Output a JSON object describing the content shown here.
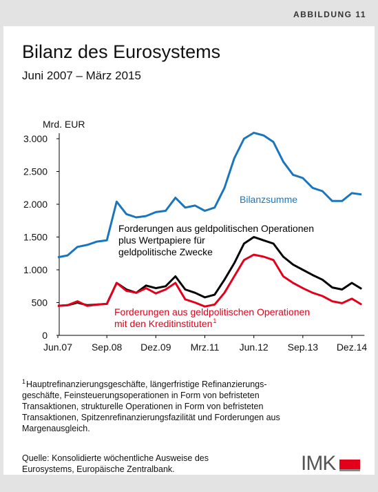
{
  "figure_label": "ABBILDUNG 11",
  "chart_data": {
    "type": "line",
    "title": "Bilanz des Eurosystems",
    "subtitle": "Juni 2007 – März 2015",
    "y_label": "Mrd. EUR",
    "categories": [
      "Jun.07",
      null,
      null,
      null,
      null,
      "Sep.08",
      null,
      null,
      null,
      null,
      "Dez.09",
      null,
      null,
      null,
      null,
      "Mrz.11",
      null,
      null,
      null,
      null,
      "Jun.12",
      null,
      null,
      null,
      null,
      "Sep.13",
      null,
      null,
      null,
      null,
      "Dez.14",
      null
    ],
    "series": [
      {
        "color": "#1a75bc",
        "values": [
          1190,
          1220,
          1350,
          1380,
          1430,
          1450,
          2040,
          1850,
          1800,
          1820,
          1880,
          1900,
          2100,
          1950,
          1980,
          1900,
          1950,
          2250,
          2700,
          3000,
          3090,
          3050,
          2950,
          2650,
          2450,
          2400,
          2250,
          2200,
          2050,
          2050,
          2170,
          2150
        ]
      },
      {
        "color": "#000000",
        "values": [
          450,
          460,
          500,
          460,
          470,
          480,
          800,
          700,
          650,
          760,
          720,
          750,
          900,
          700,
          650,
          580,
          620,
          850,
          1100,
          1400,
          1500,
          1450,
          1400,
          1200,
          1080,
          1000,
          920,
          850,
          730,
          700,
          800,
          710
        ]
      },
      {
        "color": "#e3001b",
        "values": [
          450,
          460,
          520,
          450,
          470,
          480,
          800,
          680,
          650,
          720,
          640,
          700,
          800,
          550,
          500,
          440,
          470,
          650,
          900,
          1150,
          1230,
          1200,
          1150,
          900,
          800,
          720,
          650,
          600,
          520,
          490,
          560,
          470
        ]
      }
    ],
    "ylim": [
      0,
      3000
    ],
    "yticks": [
      0,
      500,
      {
        "value": 1000,
        "label": "1.000"
      },
      {
        "value": 1500,
        "label": "1.500"
      },
      {
        "value": 2000,
        "label": "2.000"
      },
      {
        "value": 2500,
        "label": "2.500"
      },
      {
        "value": 3000,
        "label": "3.000"
      }
    ],
    "grid": false,
    "annotations": [
      {
        "lines": [
          "Bilanzsumme"
        ]
      },
      {
        "lines": [
          "Forderungen aus geldpolitischen Operationen",
          "plus Wertpapiere für",
          "geldpolitische Zwecke"
        ]
      },
      {
        "lines": [
          "Forderungen aus geldpolitischen Operationen",
          "mit den Kreditinstituten"
        ],
        "superscript": "1"
      }
    ]
  },
  "footnote": {
    "mark": "1",
    "lines": [
      "Hauptrefinanzierungsgeschäfte, längerfristige Refinanzierungs-",
      "geschäfte, Feinsteuerungsoperationen in Form von befristeten",
      "Transaktionen, strukturelle Operationen in Form von befristeten",
      "Transaktionen, Spitzenrefinanzierungsfazilität und Forderungen aus",
      "Margenausgleich."
    ]
  },
  "source": [
    "Quelle: Konsolidierte wöchentliche Ausweise des",
    "Eurosystems, Europäische Zentralbank."
  ],
  "logo": "IMK"
}
